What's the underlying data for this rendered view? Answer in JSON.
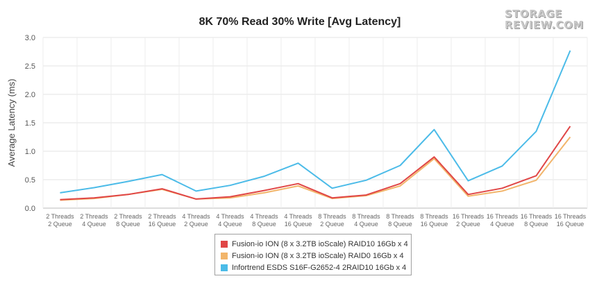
{
  "logo": {
    "line1": "STORAGE",
    "line2": "REVIEW.COM"
  },
  "chart_data": {
    "type": "line",
    "title": "8K 70% Read 30% Write [Avg Latency]",
    "xlabel": "",
    "ylabel": "Average Latency (ms)",
    "ylim": [
      0,
      3.0
    ],
    "yticks": [
      "0.0",
      "0.5",
      "1.0",
      "1.5",
      "2.0",
      "2.5",
      "3.0"
    ],
    "grid": "horizontal",
    "legend_position": "bottom",
    "categories": [
      [
        "2 Threads",
        "2 Queue"
      ],
      [
        "2 Threads",
        "4 Queue"
      ],
      [
        "2 Threads",
        "8 Queue"
      ],
      [
        "2 Threads",
        "16 Queue"
      ],
      [
        "4 Threads",
        "2 Queue"
      ],
      [
        "4 Threads",
        "4 Queue"
      ],
      [
        "4 Threads",
        "8 Queue"
      ],
      [
        "4 Threads",
        "16 Queue"
      ],
      [
        "8 Threads",
        "2 Queue"
      ],
      [
        "8 Threads",
        "4 Queue"
      ],
      [
        "8 Threads",
        "8 Queue"
      ],
      [
        "8 Threads",
        "16 Queue"
      ],
      [
        "16 Threads",
        "2 Queue"
      ],
      [
        "16 Threads",
        "4 Queue"
      ],
      [
        "16 Threads",
        "8 Queue"
      ],
      [
        "16 Threads",
        "16 Queue"
      ]
    ],
    "series": [
      {
        "name": "Fusion-io ION (8 x 3.2TB ioScale) RAID10 16Gb x 4",
        "color": "#e04646",
        "values": [
          0.15,
          0.18,
          0.24,
          0.34,
          0.16,
          0.2,
          0.31,
          0.43,
          0.18,
          0.23,
          0.43,
          0.9,
          0.24,
          0.35,
          0.57,
          1.44
        ]
      },
      {
        "name": "Fusion-io ION (8 x 3.2TB ioScale) RAID0 16Gb x 4",
        "color": "#f2b56b",
        "values": [
          0.14,
          0.17,
          0.24,
          0.33,
          0.16,
          0.18,
          0.27,
          0.39,
          0.17,
          0.22,
          0.39,
          0.87,
          0.21,
          0.3,
          0.49,
          1.25
        ]
      },
      {
        "name": "Infortrend ESDS S16F-G2652-4 2RAID10 16Gb x 4",
        "color": "#4bbbe8",
        "values": [
          0.27,
          0.36,
          0.47,
          0.59,
          0.3,
          0.4,
          0.56,
          0.79,
          0.35,
          0.49,
          0.75,
          1.38,
          0.48,
          0.74,
          1.35,
          2.77
        ]
      }
    ]
  }
}
